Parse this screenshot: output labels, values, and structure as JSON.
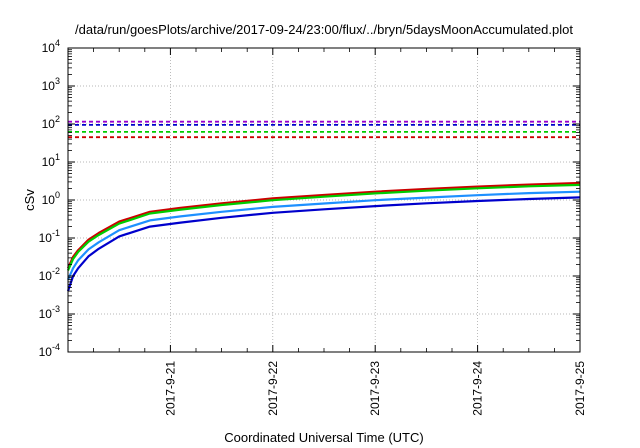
{
  "chart_data": {
    "type": "line",
    "title": "/data/run/goesPlots/archive/2017-09-24/23:00/flux/../bryn/5daysMoonAccumulated.plot",
    "xlabel": "Coordinated Universal Time (UTC)",
    "ylabel": "cSv",
    "yscale": "log",
    "ylim": [
      0.0001,
      10000
    ],
    "xlim": [
      "2017-09-20 00:00",
      "2017-09-25 00:00"
    ],
    "x_ticks": [
      "2017-9-21",
      "2017-9-22",
      "2017-9-23",
      "2017-9-24",
      "2017-9-25"
    ],
    "y_ticks": [
      {
        "base": "10",
        "exp": "-4"
      },
      {
        "base": "10",
        "exp": "-3"
      },
      {
        "base": "10",
        "exp": "-2"
      },
      {
        "base": "10",
        "exp": "-1"
      },
      {
        "base": "10",
        "exp": "0"
      },
      {
        "base": "10",
        "exp": "1"
      },
      {
        "base": "10",
        "exp": "2"
      },
      {
        "base": "10",
        "exp": "3"
      },
      {
        "base": "10",
        "exp": "4"
      }
    ],
    "grid": true,
    "x": [
      "2017-09-20 00:00",
      "2017-09-20 01:12",
      "2017-09-20 02:24",
      "2017-09-20 04:48",
      "2017-09-20 07:12",
      "2017-09-20 12:00",
      "2017-09-20 19:12",
      "2017-09-21 02:24",
      "2017-09-21 12:00",
      "2017-09-22 00:00",
      "2017-09-22 12:00",
      "2017-09-23 00:00",
      "2017-09-23 12:00",
      "2017-09-24 00:00",
      "2017-09-24 12:00",
      "2017-09-25 00:00"
    ],
    "series": [
      {
        "color": "#cc0000",
        "values": [
          0.016,
          0.032,
          0.048,
          0.09,
          0.135,
          0.27,
          0.49,
          0.62,
          0.82,
          1.1,
          1.35,
          1.65,
          1.95,
          2.25,
          2.55,
          2.8
        ]
      },
      {
        "color": "#00cc00",
        "values": [
          0.014,
          0.028,
          0.043,
          0.08,
          0.12,
          0.24,
          0.44,
          0.56,
          0.74,
          0.99,
          1.22,
          1.49,
          1.76,
          2.03,
          2.3,
          2.5
        ]
      },
      {
        "color": "#1e90ff",
        "values": [
          0.008,
          0.016,
          0.026,
          0.05,
          0.077,
          0.16,
          0.29,
          0.37,
          0.49,
          0.66,
          0.81,
          0.99,
          1.16,
          1.34,
          1.52,
          1.65
        ]
      },
      {
        "color": "#0000cc",
        "values": [
          0.004,
          0.01,
          0.016,
          0.033,
          0.052,
          0.11,
          0.2,
          0.255,
          0.34,
          0.46,
          0.57,
          0.69,
          0.82,
          0.94,
          1.06,
          1.17
        ]
      }
    ],
    "thresholds": [
      {
        "color": "#9900cc",
        "value": 115,
        "style": "dashed"
      },
      {
        "color": "#0000cc",
        "value": 95,
        "style": "dashed"
      },
      {
        "color": "#00cc00",
        "value": 62,
        "style": "dashed"
      },
      {
        "color": "#cc0000",
        "value": 45,
        "style": "dashed"
      }
    ]
  }
}
